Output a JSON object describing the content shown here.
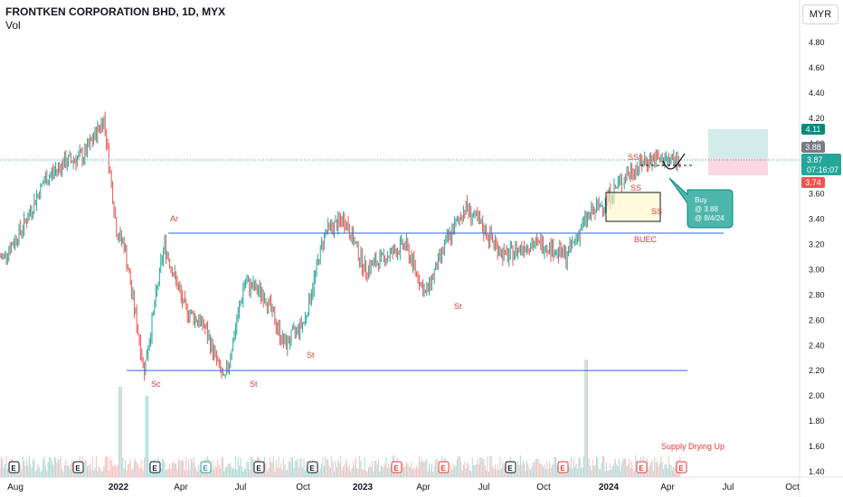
{
  "header": {
    "title": "FRONTKEN CORPORATION BHD, 1D, MYX",
    "subtitle": "Vol",
    "currency": "MYR"
  },
  "price_tags": {
    "target": "4.11",
    "buy": "3.88",
    "last": "3.87",
    "countdown": "07:16:07",
    "stop": "3.74"
  },
  "annotations": {
    "ar": "Ar",
    "sc": "Sc",
    "st1": "St",
    "st2": "St",
    "st3": "St",
    "st4": "St",
    "buec": "BUEC",
    "ss1": "SS",
    "ss2": "SS",
    "ss3": "SS",
    "supply": "Supply Drying Up",
    "callout_line1": "Buy",
    "callout_line2": "@ 3.88",
    "callout_line3": "@ 8/4/24"
  },
  "chart_data": {
    "type": "candlestick",
    "title": "FRONTKEN CORPORATION BHD, 1D, MYX",
    "x_ticks": [
      "Aug",
      "2022",
      "Apr",
      "Jul",
      "Oct",
      "2023",
      "Apr",
      "Jul",
      "Oct",
      "2024",
      "Apr",
      "Jul",
      "Oct"
    ],
    "y_ticks": [
      "4.80",
      "4.60",
      "4.40",
      "4.20",
      "4.00",
      "3.80",
      "3.60",
      "3.40",
      "3.20",
      "3.00",
      "2.80",
      "2.60",
      "2.40",
      "2.20",
      "2.00",
      "1.80",
      "1.60",
      "1.40"
    ],
    "y_range": [
      1.4,
      4.9
    ],
    "price_path": [
      [
        "2021-08",
        3.1
      ],
      [
        "2021-09",
        3.35
      ],
      [
        "2021-10",
        3.7
      ],
      [
        "2021-11",
        3.85
      ],
      [
        "2021-12",
        3.9
      ],
      [
        "2022-01",
        4.2
      ],
      [
        "2022-01-20",
        3.3
      ],
      [
        "2022-02",
        3.2
      ],
      [
        "2022-03",
        2.2
      ],
      [
        "2022-04",
        3.2
      ],
      [
        "2022-05",
        2.7
      ],
      [
        "2022-06",
        2.55
      ],
      [
        "2022-07",
        2.1
      ],
      [
        "2022-08",
        2.9
      ],
      [
        "2022-09",
        2.8
      ],
      [
        "2022-10",
        2.4
      ],
      [
        "2022-11",
        2.6
      ],
      [
        "2022-12",
        3.3
      ],
      [
        "2023-01",
        3.4
      ],
      [
        "2023-02",
        3.0
      ],
      [
        "2023-03",
        3.1
      ],
      [
        "2023-04",
        3.2
      ],
      [
        "2023-05",
        2.8
      ],
      [
        "2023-06",
        3.2
      ],
      [
        "2023-07",
        3.5
      ],
      [
        "2023-08",
        3.3
      ],
      [
        "2023-09",
        3.1
      ],
      [
        "2023-10",
        3.2
      ],
      [
        "2023-11",
        3.2
      ],
      [
        "2023-12",
        3.1
      ],
      [
        "2024-01",
        3.4
      ],
      [
        "2024-02",
        3.55
      ],
      [
        "2024-03",
        3.75
      ],
      [
        "2024-04",
        3.87
      ]
    ],
    "levels": {
      "resistance": 3.29,
      "support": 2.2,
      "current": 3.87,
      "buy": 3.88,
      "target": 4.11,
      "stop": 3.74
    },
    "volume_spike_date": "2024-01"
  }
}
